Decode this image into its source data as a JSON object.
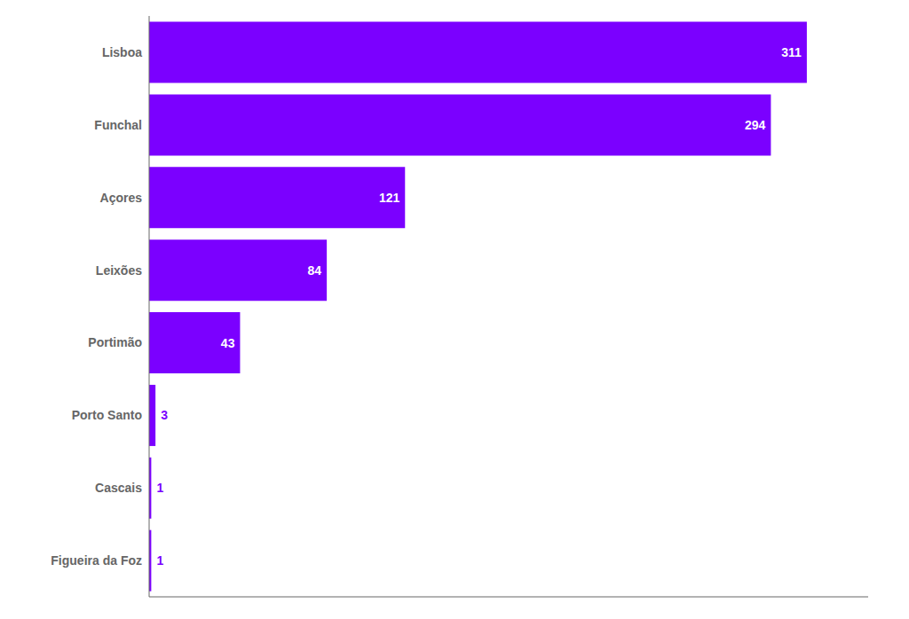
{
  "chart_data": {
    "type": "bar",
    "orientation": "horizontal",
    "categories": [
      "Lisboa",
      "Funchal",
      "Açores",
      "Leixões",
      "Portimão",
      "Porto Santo",
      "Cascais",
      "Figueira da Foz"
    ],
    "values": [
      311,
      294,
      121,
      84,
      43,
      3,
      1,
      1
    ],
    "color": "#7B00FF",
    "xlim": [
      0,
      340
    ],
    "data_labels": true,
    "tick_labels": "y",
    "grid": false
  }
}
